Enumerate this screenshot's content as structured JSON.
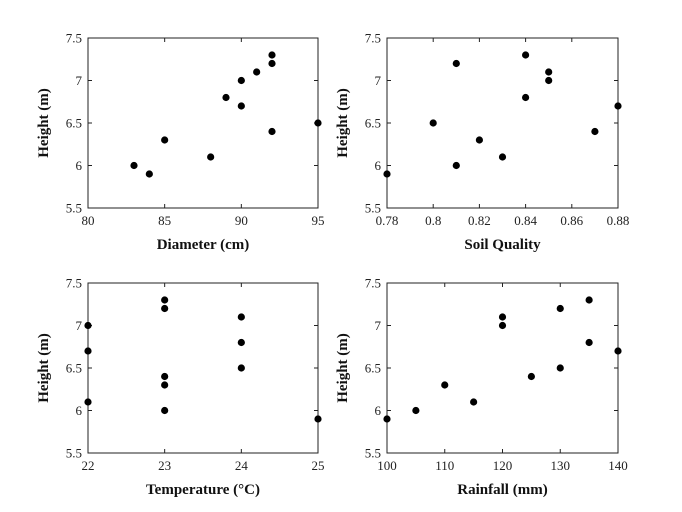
{
  "figure": {
    "background": "#ffffff",
    "marker_color": "#000000"
  },
  "chart_data": [
    {
      "type": "scatter",
      "title": "",
      "xlabel": "Diameter (cm)",
      "ylabel": "Height (m)",
      "xlim": [
        80,
        95
      ],
      "ylim": [
        5.5,
        7.5
      ],
      "xticks": [
        "80",
        "85",
        "90",
        "95"
      ],
      "yticks": [
        "5.5",
        "6",
        "6.5",
        "7",
        "7.5"
      ],
      "grid": false,
      "points": [
        {
          "x": 83,
          "y": 6.0
        },
        {
          "x": 84,
          "y": 5.9
        },
        {
          "x": 85,
          "y": 6.3
        },
        {
          "x": 88,
          "y": 6.1
        },
        {
          "x": 89,
          "y": 6.8
        },
        {
          "x": 90,
          "y": 7.0
        },
        {
          "x": 90,
          "y": 6.7
        },
        {
          "x": 91,
          "y": 7.1
        },
        {
          "x": 92,
          "y": 7.3
        },
        {
          "x": 92,
          "y": 7.2
        },
        {
          "x": 92,
          "y": 6.4
        },
        {
          "x": 95,
          "y": 6.5
        }
      ]
    },
    {
      "type": "scatter",
      "title": "",
      "xlabel": "Soil Quality",
      "ylabel": "Height (m)",
      "xlim": [
        0.78,
        0.88
      ],
      "ylim": [
        5.5,
        7.5
      ],
      "xticks": [
        "0.78",
        "0.8",
        "0.82",
        "0.84",
        "0.86",
        "0.88"
      ],
      "yticks": [
        "5.5",
        "6",
        "6.5",
        "7",
        "7.5"
      ],
      "grid": false,
      "points": [
        {
          "x": 0.78,
          "y": 5.9
        },
        {
          "x": 0.8,
          "y": 6.5
        },
        {
          "x": 0.81,
          "y": 7.2
        },
        {
          "x": 0.81,
          "y": 6.0
        },
        {
          "x": 0.82,
          "y": 6.3
        },
        {
          "x": 0.83,
          "y": 6.1
        },
        {
          "x": 0.84,
          "y": 7.3
        },
        {
          "x": 0.84,
          "y": 6.8
        },
        {
          "x": 0.85,
          "y": 7.1
        },
        {
          "x": 0.85,
          "y": 7.0
        },
        {
          "x": 0.87,
          "y": 6.4
        },
        {
          "x": 0.88,
          "y": 6.7
        }
      ]
    },
    {
      "type": "scatter",
      "title": "",
      "xlabel": "Temperature (°C)",
      "ylabel": "Height (m)",
      "xlim": [
        22,
        25
      ],
      "ylim": [
        5.5,
        7.5
      ],
      "xticks": [
        "22",
        "23",
        "24",
        "25"
      ],
      "yticks": [
        "5.5",
        "6",
        "6.5",
        "7",
        "7.5"
      ],
      "grid": false,
      "points": [
        {
          "x": 22,
          "y": 7.0
        },
        {
          "x": 22,
          "y": 6.7
        },
        {
          "x": 22,
          "y": 6.1
        },
        {
          "x": 23,
          "y": 7.3
        },
        {
          "x": 23,
          "y": 7.2
        },
        {
          "x": 23,
          "y": 6.4
        },
        {
          "x": 23,
          "y": 6.3
        },
        {
          "x": 23,
          "y": 6.0
        },
        {
          "x": 24,
          "y": 7.1
        },
        {
          "x": 24,
          "y": 6.8
        },
        {
          "x": 24,
          "y": 6.5
        },
        {
          "x": 25,
          "y": 5.9
        }
      ]
    },
    {
      "type": "scatter",
      "title": "",
      "xlabel": "Rainfall (mm)",
      "ylabel": "Height (m)",
      "xlim": [
        100,
        140
      ],
      "ylim": [
        5.5,
        7.5
      ],
      "xticks": [
        "100",
        "110",
        "120",
        "130",
        "140"
      ],
      "yticks": [
        "5.5",
        "6",
        "6.5",
        "7",
        "7.5"
      ],
      "grid": false,
      "points": [
        {
          "x": 100,
          "y": 5.9
        },
        {
          "x": 105,
          "y": 6.0
        },
        {
          "x": 110,
          "y": 6.3
        },
        {
          "x": 115,
          "y": 6.1
        },
        {
          "x": 120,
          "y": 7.1
        },
        {
          "x": 120,
          "y": 7.0
        },
        {
          "x": 125,
          "y": 6.4
        },
        {
          "x": 130,
          "y": 7.2
        },
        {
          "x": 130,
          "y": 6.5
        },
        {
          "x": 135,
          "y": 7.3
        },
        {
          "x": 135,
          "y": 6.8
        },
        {
          "x": 140,
          "y": 6.7
        }
      ]
    }
  ]
}
